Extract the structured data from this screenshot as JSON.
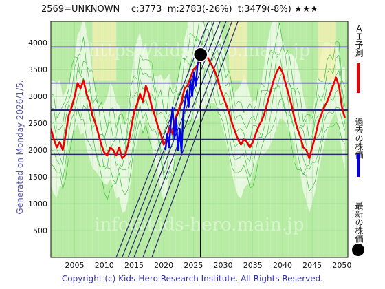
{
  "header": {
    "code": "2569=UNKNOWN",
    "current": "c:3773",
    "median": "m:2783(-26%)",
    "target": "t:3479(-8%)",
    "stars": "★★★"
  },
  "generated": "Generated on Monday 2026/1/5.",
  "footer": "Copyright (c) Kids-Hero Research Institute. All Rights Reserved.",
  "watermarks": [
    "https://kids-hero.main.jp",
    "info@kids-hero.main.jp"
  ],
  "legend": {
    "ai_forecast": "ＡＩ予測",
    "past_price": "過去の株価",
    "latest_price": "最新の株価"
  },
  "colors": {
    "forecast": "#ee0000",
    "past": "#0000ee",
    "latest": "#000000",
    "band_fill": "#b8eca4",
    "yellow_fill": "#f4f0b0",
    "grid": "#2a2a6a"
  },
  "chart_data": {
    "type": "line",
    "title": "",
    "xlabel": "",
    "ylabel": "",
    "xlim": [
      2001,
      2051
    ],
    "ylim": [
      0,
      4400
    ],
    "x_ticks": [
      2005,
      2010,
      2015,
      2020,
      2025,
      2030,
      2035,
      2040,
      2045,
      2050
    ],
    "y_ticks": [
      500,
      1000,
      1500,
      2000,
      2500,
      3000,
      3500,
      4000
    ],
    "grid": true,
    "legend_position": "right",
    "horizontal_levels": [
      1920,
      2200,
      2750,
      3250,
      3920
    ],
    "latest_point": {
      "x": 2026.2,
      "y": 3780
    },
    "current_marker_x": 2026.2,
    "series": [
      {
        "name": "ＡＩ予測",
        "x": [
          2001,
          2001.5,
          2002,
          2002.5,
          2003,
          2003.5,
          2004,
          2004.5,
          2005,
          2005.5,
          2006,
          2006.5,
          2007,
          2007.5,
          2008,
          2008.5,
          2009,
          2009.5,
          2010,
          2010.5,
          2011,
          2011.5,
          2012,
          2012.5,
          2013,
          2013.5,
          2014,
          2014.5,
          2015,
          2015.5,
          2016,
          2016.5,
          2017,
          2017.5,
          2018,
          2018.5,
          2019,
          2019.5,
          2020,
          2020.5,
          2021,
          2021.5,
          2022,
          2022.5,
          2023,
          2023.5,
          2024,
          2024.5,
          2025,
          2025.5,
          2026,
          2026.5,
          2027,
          2027.5,
          2028,
          2028.5,
          2029,
          2029.5,
          2030,
          2030.5,
          2031,
          2031.5,
          2032,
          2032.5,
          2033,
          2033.5,
          2034,
          2034.5,
          2035,
          2035.5,
          2036,
          2036.5,
          2037,
          2037.5,
          2038,
          2038.5,
          2039,
          2039.5,
          2040,
          2040.5,
          2041,
          2041.5,
          2042,
          2042.5,
          2043,
          2043.5,
          2044,
          2044.5,
          2045,
          2045.5,
          2046,
          2046.5,
          2047,
          2047.5,
          2048,
          2048.5,
          2049,
          2049.5,
          2050,
          2050.5
        ],
        "values": [
          2400,
          2200,
          2050,
          2150,
          2000,
          2300,
          2650,
          2800,
          3000,
          3250,
          3150,
          3300,
          3050,
          2900,
          2650,
          2500,
          2300,
          2100,
          1950,
          1900,
          2050,
          2000,
          1900,
          2050,
          1850,
          1900,
          2100,
          2400,
          2700,
          2850,
          3050,
          2900,
          3200,
          3050,
          2800,
          2650,
          2450,
          2300,
          2100,
          2200,
          2450,
          2300,
          2600,
          2750,
          2900,
          3150,
          3200,
          3350,
          3500,
          3550,
          3650,
          3750,
          3800,
          3700,
          3600,
          3500,
          3350,
          3150,
          3000,
          2850,
          2700,
          2500,
          2350,
          2200,
          2100,
          2200,
          2150,
          2050,
          2150,
          2300,
          2450,
          2550,
          2700,
          2900,
          3100,
          3300,
          3450,
          3550,
          3450,
          3250,
          3050,
          2850,
          2600,
          2400,
          2250,
          2050,
          2000,
          1850,
          2050,
          2250,
          2500,
          2650,
          2800,
          2900,
          3050,
          3200,
          3350,
          3200,
          2800,
          2600
        ]
      },
      {
        "name": "過去の株価",
        "x": [
          2020.3,
          2020.6,
          2020.9,
          2021.2,
          2021.5,
          2021.8,
          2022.1,
          2022.4,
          2022.7,
          2023.0,
          2023.3,
          2023.6,
          2023.9,
          2024.2,
          2024.5,
          2024.8,
          2025.1,
          2025.4,
          2025.7,
          2026.0
        ],
        "values": [
          2000,
          2300,
          2050,
          2500,
          2800,
          2200,
          2600,
          2000,
          2400,
          1950,
          2700,
          2900,
          3100,
          2800,
          3300,
          3000,
          3450,
          3200,
          3600,
          3700
        ]
      }
    ]
  }
}
